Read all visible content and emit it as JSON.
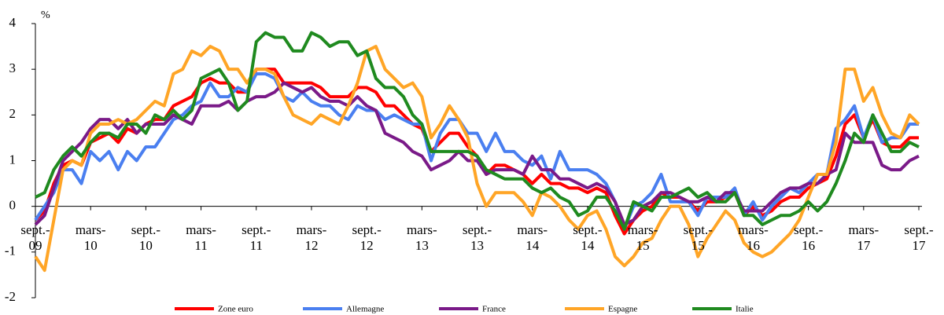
{
  "chart_data": {
    "type": "line",
    "y_label": "%",
    "categories": [
      "sept.- 09",
      null,
      null,
      null,
      null,
      null,
      "mars- 10",
      null,
      null,
      null,
      null,
      null,
      "sept.- 10",
      null,
      null,
      null,
      null,
      null,
      "mars- 11",
      null,
      null,
      null,
      null,
      null,
      "sept.- 11",
      null,
      null,
      null,
      null,
      null,
      "mars- 12",
      null,
      null,
      null,
      null,
      null,
      "sept.- 12",
      null,
      null,
      null,
      null,
      null,
      "mars- 13",
      null,
      null,
      null,
      null,
      null,
      "sept.- 13",
      null,
      null,
      null,
      null,
      null,
      "mars- 14",
      null,
      null,
      null,
      null,
      null,
      "sept.- 14",
      null,
      null,
      null,
      null,
      null,
      "mars- 15",
      null,
      null,
      null,
      null,
      null,
      "sept.- 15",
      null,
      null,
      null,
      null,
      null,
      "mars- 16",
      null,
      null,
      null,
      null,
      null,
      "sept.- 16",
      null,
      null,
      null,
      null,
      null,
      "mars- 17",
      null,
      null,
      null,
      null,
      null,
      "sept.- 17"
    ],
    "ylim": [
      -2,
      4
    ],
    "yticks": [
      -2,
      -1,
      0,
      1,
      2,
      3,
      4
    ],
    "series": [
      {
        "name": "Zone euro",
        "color": "#ff0000",
        "values": [
          -0.3,
          -0.1,
          0.5,
          0.9,
          1.0,
          0.9,
          1.4,
          1.5,
          1.6,
          1.4,
          1.7,
          1.6,
          1.8,
          1.9,
          1.9,
          2.2,
          2.3,
          2.4,
          2.7,
          2.8,
          2.7,
          2.7,
          2.5,
          2.5,
          3.0,
          3.0,
          3.0,
          2.7,
          2.7,
          2.7,
          2.7,
          2.6,
          2.4,
          2.4,
          2.4,
          2.6,
          2.6,
          2.5,
          2.2,
          2.2,
          2.0,
          1.8,
          1.7,
          1.2,
          1.4,
          1.6,
          1.6,
          1.3,
          1.1,
          0.7,
          0.9,
          0.9,
          0.8,
          0.7,
          0.5,
          0.7,
          0.5,
          0.5,
          0.4,
          0.4,
          0.3,
          0.4,
          0.3,
          -0.2,
          -0.6,
          -0.3,
          -0.1,
          0.0,
          0.3,
          0.2,
          0.2,
          0.1,
          -0.1,
          0.1,
          0.1,
          0.2,
          0.3,
          -0.2,
          0.0,
          -0.2,
          -0.1,
          0.1,
          0.2,
          0.2,
          0.4,
          0.5,
          0.6,
          1.1,
          1.8,
          2.0,
          1.5,
          1.9,
          1.4,
          1.3,
          1.3,
          1.5,
          1.5
        ]
      },
      {
        "name": "Allemagne",
        "color": "#4a7ff0",
        "values": [
          -0.3,
          0.0,
          0.3,
          0.8,
          0.8,
          0.5,
          1.2,
          1.0,
          1.2,
          0.8,
          1.2,
          1.0,
          1.3,
          1.3,
          1.6,
          1.9,
          2.0,
          2.2,
          2.3,
          2.7,
          2.4,
          2.4,
          2.6,
          2.5,
          2.9,
          2.9,
          2.8,
          2.4,
          2.3,
          2.5,
          2.3,
          2.2,
          2.2,
          2.0,
          1.9,
          2.2,
          2.1,
          2.1,
          1.9,
          2.0,
          1.9,
          1.8,
          1.8,
          1.0,
          1.6,
          1.9,
          1.9,
          1.6,
          1.6,
          1.2,
          1.6,
          1.2,
          1.2,
          1.0,
          0.9,
          1.1,
          0.6,
          1.2,
          0.8,
          0.8,
          0.8,
          0.7,
          0.5,
          0.1,
          -0.5,
          0.0,
          0.1,
          0.3,
          0.7,
          0.1,
          0.1,
          0.1,
          -0.2,
          0.2,
          0.2,
          0.2,
          0.4,
          -0.2,
          0.1,
          -0.3,
          0.0,
          0.2,
          0.4,
          0.3,
          0.5,
          0.7,
          0.7,
          1.7,
          1.9,
          2.2,
          1.5,
          2.0,
          1.4,
          1.5,
          1.5,
          1.8,
          1.8
        ]
      },
      {
        "name": "France",
        "color": "#7a1a88",
        "values": [
          -0.4,
          -0.2,
          0.4,
          1.0,
          1.2,
          1.4,
          1.7,
          1.9,
          1.9,
          1.7,
          1.9,
          1.6,
          1.8,
          1.8,
          1.8,
          2.0,
          1.9,
          1.8,
          2.2,
          2.2,
          2.2,
          2.3,
          2.1,
          2.3,
          2.4,
          2.4,
          2.5,
          2.7,
          2.6,
          2.5,
          2.6,
          2.4,
          2.3,
          2.3,
          2.2,
          2.4,
          2.2,
          2.1,
          1.6,
          1.5,
          1.4,
          1.2,
          1.1,
          0.8,
          0.9,
          1.0,
          1.2,
          1.0,
          1.0,
          0.7,
          0.8,
          0.8,
          0.8,
          0.7,
          1.1,
          0.8,
          0.8,
          0.6,
          0.6,
          0.5,
          0.4,
          0.5,
          0.4,
          0.1,
          -0.4,
          -0.3,
          0.0,
          0.1,
          0.3,
          0.3,
          0.2,
          0.1,
          0.1,
          0.2,
          0.1,
          0.3,
          0.3,
          -0.1,
          -0.1,
          -0.1,
          0.1,
          0.3,
          0.4,
          0.4,
          0.5,
          0.5,
          0.7,
          0.8,
          1.6,
          1.4,
          1.4,
          1.4,
          0.9,
          0.8,
          0.8,
          1.0,
          1.1
        ]
      },
      {
        "name": "Espagne",
        "color": "#ffa526",
        "values": [
          -1.1,
          -1.4,
          -0.3,
          0.8,
          1.0,
          0.9,
          1.6,
          1.8,
          1.8,
          1.9,
          1.8,
          1.9,
          2.1,
          2.3,
          2.2,
          2.9,
          3.0,
          3.4,
          3.3,
          3.5,
          3.4,
          3.0,
          3.0,
          2.7,
          3.0,
          3.0,
          2.9,
          2.4,
          2.0,
          1.9,
          1.8,
          2.0,
          1.9,
          1.8,
          2.2,
          2.7,
          3.4,
          3.5,
          3.0,
          2.8,
          2.6,
          2.7,
          2.4,
          1.5,
          1.8,
          2.2,
          1.9,
          1.5,
          0.5,
          0.0,
          0.3,
          0.3,
          0.3,
          0.1,
          -0.2,
          0.3,
          0.2,
          0.0,
          -0.3,
          -0.5,
          -0.2,
          -0.1,
          -0.5,
          -1.1,
          -1.3,
          -1.1,
          -0.8,
          -0.7,
          -0.3,
          0.0,
          0.0,
          -0.4,
          -1.1,
          -0.7,
          -0.4,
          -0.1,
          -0.3,
          -0.8,
          -1.0,
          -1.1,
          -1.0,
          -0.8,
          -0.6,
          -0.3,
          0.2,
          0.7,
          0.7,
          1.4,
          3.0,
          3.0,
          2.3,
          2.6,
          2.0,
          1.6,
          1.5,
          2.0,
          1.8
        ]
      },
      {
        "name": "Italie",
        "color": "#1f8a1f",
        "values": [
          0.2,
          0.3,
          0.8,
          1.1,
          1.3,
          1.1,
          1.4,
          1.6,
          1.6,
          1.5,
          1.8,
          1.8,
          1.6,
          2.0,
          1.9,
          2.1,
          1.9,
          2.1,
          2.8,
          2.9,
          3.0,
          2.7,
          2.1,
          2.3,
          3.6,
          3.8,
          3.7,
          3.7,
          3.4,
          3.4,
          3.8,
          3.7,
          3.5,
          3.6,
          3.6,
          3.3,
          3.4,
          2.8,
          2.6,
          2.6,
          2.4,
          2.0,
          1.8,
          1.2,
          1.2,
          1.2,
          1.2,
          1.2,
          1.1,
          0.8,
          0.7,
          0.6,
          0.6,
          0.6,
          0.4,
          0.3,
          0.4,
          0.2,
          0.1,
          -0.2,
          -0.1,
          0.2,
          0.2,
          -0.1,
          -0.5,
          0.1,
          0.0,
          -0.1,
          0.2,
          0.2,
          0.3,
          0.4,
          0.2,
          0.3,
          0.1,
          0.1,
          0.3,
          -0.2,
          -0.2,
          -0.4,
          -0.3,
          -0.2,
          -0.2,
          -0.1,
          0.1,
          -0.1,
          0.1,
          0.5,
          1.0,
          1.6,
          1.4,
          2.0,
          1.6,
          1.2,
          1.2,
          1.4,
          1.3
        ]
      }
    ]
  }
}
